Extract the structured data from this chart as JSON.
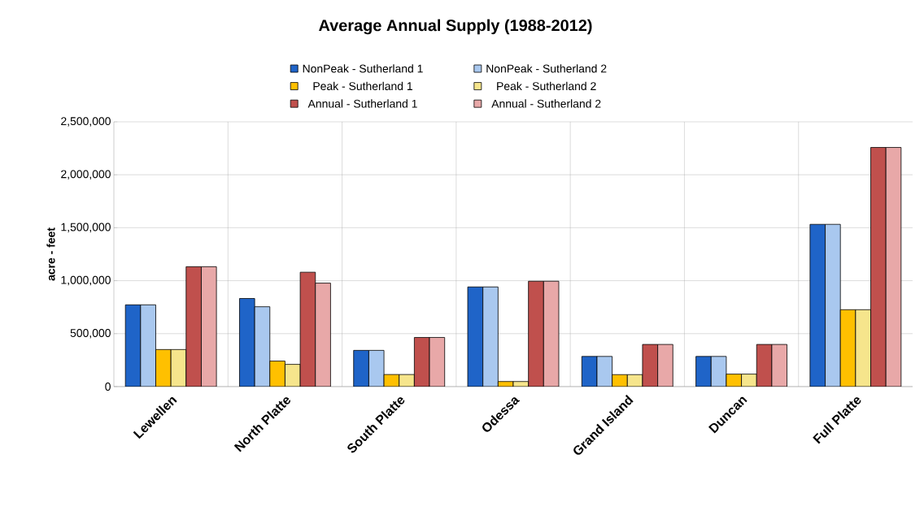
{
  "chart_data": {
    "type": "bar",
    "title": "Average Annual Supply (1988-2012)",
    "ylabel": "acre - feet",
    "categories": [
      "Lewellen",
      "North Platte",
      "South Platte",
      "Odessa",
      "Grand Island",
      "Duncan",
      "Full Platte"
    ],
    "series": [
      {
        "name": "NonPeak - Sutherland 1",
        "color": "#1f64c8",
        "values": [
          772000,
          832000,
          342000,
          941000,
          285000,
          285000,
          1532000
        ]
      },
      {
        "name": "NonPeak - Sutherland 2",
        "color": "#a9c8ef",
        "values": [
          772000,
          754000,
          342000,
          941000,
          285000,
          285000,
          1532000
        ]
      },
      {
        "name": "Peak - Sutherland 1",
        "color": "#ffc000",
        "values": [
          350000,
          241000,
          114000,
          48000,
          113000,
          118000,
          726000
        ]
      },
      {
        "name": "Peak - Sutherland 2",
        "color": "#f6e58c",
        "values": [
          350000,
          210000,
          114000,
          48000,
          113000,
          118000,
          726000
        ]
      },
      {
        "name": "Annual - Sutherland 1",
        "color": "#c0504d",
        "values": [
          1132000,
          1080000,
          464000,
          995000,
          398000,
          398000,
          2258000
        ]
      },
      {
        "name": "Annual - Sutherland 2",
        "color": "#e8a8a8",
        "values": [
          1132000,
          977000,
          464000,
          995000,
          398000,
          398000,
          2258000
        ]
      }
    ],
    "ylim": [
      0,
      2500000
    ],
    "yticks": [
      {
        "value": 0,
        "label": "0"
      },
      {
        "value": 500000,
        "label": "500,000"
      },
      {
        "value": 1000000,
        "label": "1,000,000"
      },
      {
        "value": 1500000,
        "label": "1,500,000"
      },
      {
        "value": 2000000,
        "label": "2,000,000"
      },
      {
        "value": 2500000,
        "label": "2,500,000"
      }
    ],
    "grid": true,
    "legend": "top"
  }
}
